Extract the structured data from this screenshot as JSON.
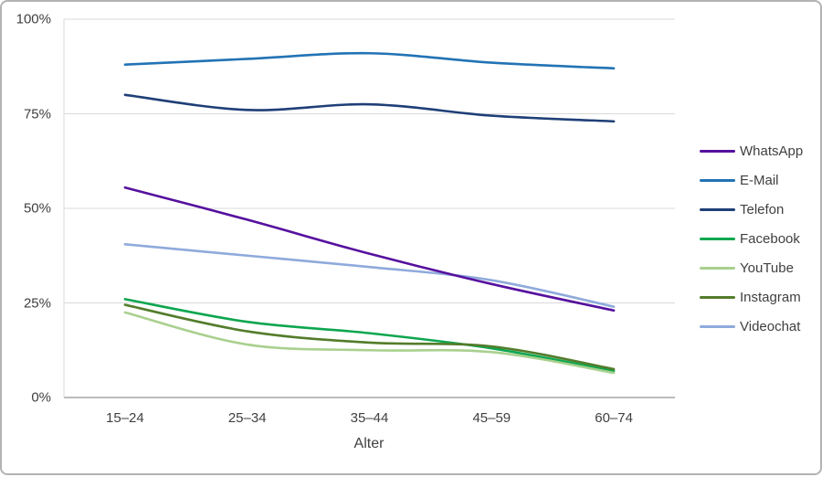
{
  "chart_data": {
    "type": "line",
    "title": "",
    "xlabel": "Alter",
    "ylabel": "",
    "categories": [
      "15–24",
      "25–34",
      "35–44",
      "45–59",
      "60–74"
    ],
    "y_ticks": [
      {
        "value": 0,
        "label": "0%"
      },
      {
        "value": 25,
        "label": "25%"
      },
      {
        "value": 50,
        "label": "50%"
      },
      {
        "value": 75,
        "label": "75%"
      },
      {
        "value": 100,
        "label": "100%"
      }
    ],
    "ylim": [
      0,
      100
    ],
    "grid": true,
    "line_style": "smooth",
    "legend_position": "right",
    "series": [
      {
        "name": "WhatsApp",
        "color": "#56109E",
        "values": [
          55.5,
          47,
          38,
          30,
          23
        ]
      },
      {
        "name": "E-Mail",
        "color": "#2273B5",
        "values": [
          88,
          89.5,
          91,
          88.5,
          87
        ]
      },
      {
        "name": "Telefon",
        "color": "#1F3F77",
        "values": [
          80,
          76,
          77.5,
          74.5,
          73
        ]
      },
      {
        "name": "Facebook",
        "color": "#0DA64F",
        "values": [
          26,
          20,
          17,
          13,
          7
        ]
      },
      {
        "name": "YouTube",
        "color": "#A9D08E",
        "values": [
          22.5,
          14,
          12.5,
          12,
          6.5
        ]
      },
      {
        "name": "Instagram",
        "color": "#537C2B",
        "values": [
          24.5,
          17.5,
          14.5,
          13.5,
          7.5
        ]
      },
      {
        "name": "Videochat",
        "color": "#8FAADC",
        "values": [
          40.5,
          37.5,
          34.5,
          31,
          24
        ]
      }
    ],
    "colors": {
      "gridline": "#D9D9D9",
      "axis_line": "#A6A6A6",
      "text": "#404040",
      "frame_border": "#B3B3B3"
    }
  }
}
